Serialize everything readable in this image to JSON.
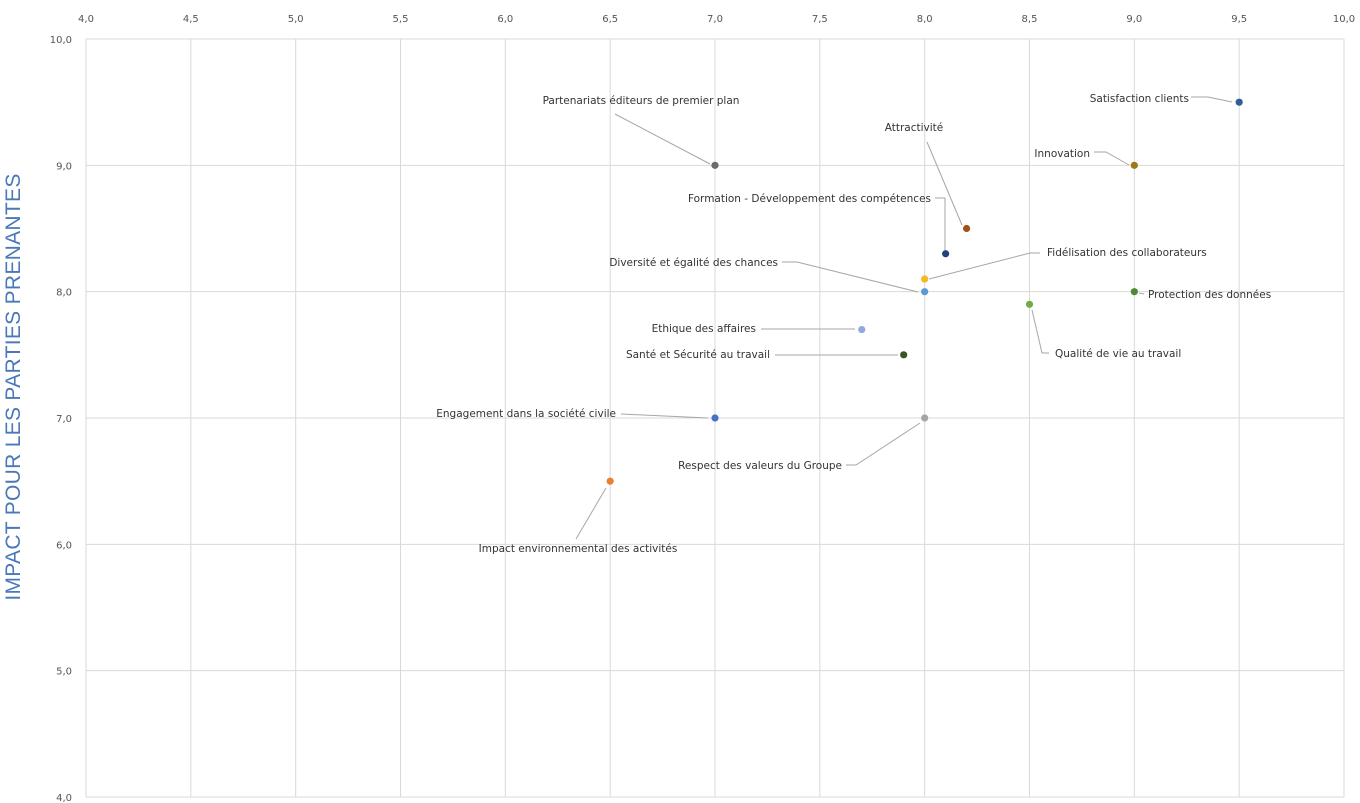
{
  "chart_data": {
    "type": "scatter",
    "title": "",
    "xlabel": "",
    "ylabel": "IMPACT POUR LES PARTIES PRENANTES",
    "xlim": [
      4.0,
      10.0
    ],
    "ylim": [
      4.0,
      10.0
    ],
    "grid": true,
    "x_axis_position": "top",
    "x_ticks": [
      "4,0",
      "4,5",
      "5,0",
      "5,5",
      "6,0",
      "6,5",
      "7,0",
      "7,5",
      "8,0",
      "8,5",
      "9,0",
      "9,5",
      "10,0"
    ],
    "y_ticks": [
      "4,0",
      "5,0",
      "6,0",
      "7,0",
      "8,0",
      "9,0",
      "10,0"
    ],
    "points": [
      {
        "label": "Satisfaction clients",
        "x": 9.5,
        "y": 9.5,
        "color": "#2e5d9a"
      },
      {
        "label": "Partenariats éditeurs de premier plan",
        "x": 7.0,
        "y": 9.0,
        "color": "#6b6b6b"
      },
      {
        "label": "Innovation",
        "x": 9.0,
        "y": 9.0,
        "color": "#9b7a1c"
      },
      {
        "label": "Attractivité",
        "x": 8.2,
        "y": 8.5,
        "color": "#a6511c"
      },
      {
        "label": "Formation - Développement des compétences",
        "x": 8.1,
        "y": 8.3,
        "color": "#24407a"
      },
      {
        "label": "Fidélisation des collaborateurs",
        "x": 8.0,
        "y": 8.1,
        "color": "#f2b922"
      },
      {
        "label": "Diversité et égalité des chances",
        "x": 8.0,
        "y": 8.0,
        "color": "#5b9bd5"
      },
      {
        "label": "Protection des données",
        "x": 9.0,
        "y": 8.0,
        "color": "#4e8a34"
      },
      {
        "label": "Qualité de vie au travail",
        "x": 8.5,
        "y": 7.9,
        "color": "#70ad47"
      },
      {
        "label": "Ethique des affaires",
        "x": 7.7,
        "y": 7.7,
        "color": "#8eaadb"
      },
      {
        "label": "Santé et Sécurité au travail",
        "x": 7.9,
        "y": 7.5,
        "color": "#375623"
      },
      {
        "label": "Engagement dans la société civile",
        "x": 7.0,
        "y": 7.0,
        "color": "#4472c4"
      },
      {
        "label": "Respect des valeurs du Groupe",
        "x": 8.0,
        "y": 7.0,
        "color": "#a5a5a5"
      },
      {
        "label": "Impact environnemental des activités",
        "x": 6.5,
        "y": 6.5,
        "color": "#ed7d31"
      }
    ]
  }
}
